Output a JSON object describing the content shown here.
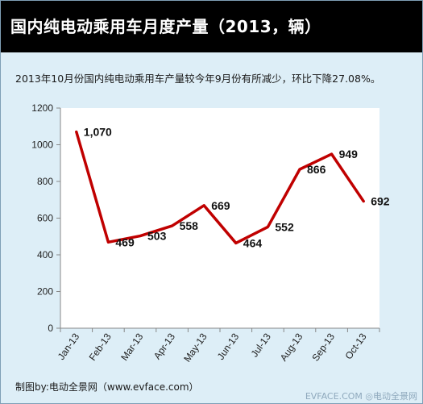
{
  "title": "国内纯电动乘用车月度产量（2013，辆）",
  "subtitle": "2013年10月份国内纯电动乘用车产量较今年9月份有所减少，环比下降27.08%。",
  "credit": "制图by:电动全景网（www.evface.com）",
  "watermark": "EVFACE.COM ◎电动全景网",
  "colors": {
    "line": "#c00000",
    "header_bg": "#000000",
    "plot_bg": "#ffffff",
    "page_bg": "#ddeef7"
  },
  "chart_data": {
    "type": "line",
    "categories": [
      "Jan-13",
      "Feb-13",
      "Mar-13",
      "Apr-13",
      "May-13",
      "Jun-13",
      "Jul-13",
      "Aug-13",
      "Sep-13",
      "Oct-13"
    ],
    "values": [
      1070,
      469,
      503,
      558,
      669,
      464,
      552,
      866,
      949,
      692
    ],
    "data_labels": [
      "1,070",
      "469",
      "503",
      "558",
      "669",
      "464",
      "552",
      "866",
      "949",
      "692"
    ],
    "ylim": [
      0,
      1200
    ],
    "yticks": [
      0,
      200,
      400,
      600,
      800,
      1000,
      1200
    ],
    "grid": false,
    "legend": "none"
  }
}
